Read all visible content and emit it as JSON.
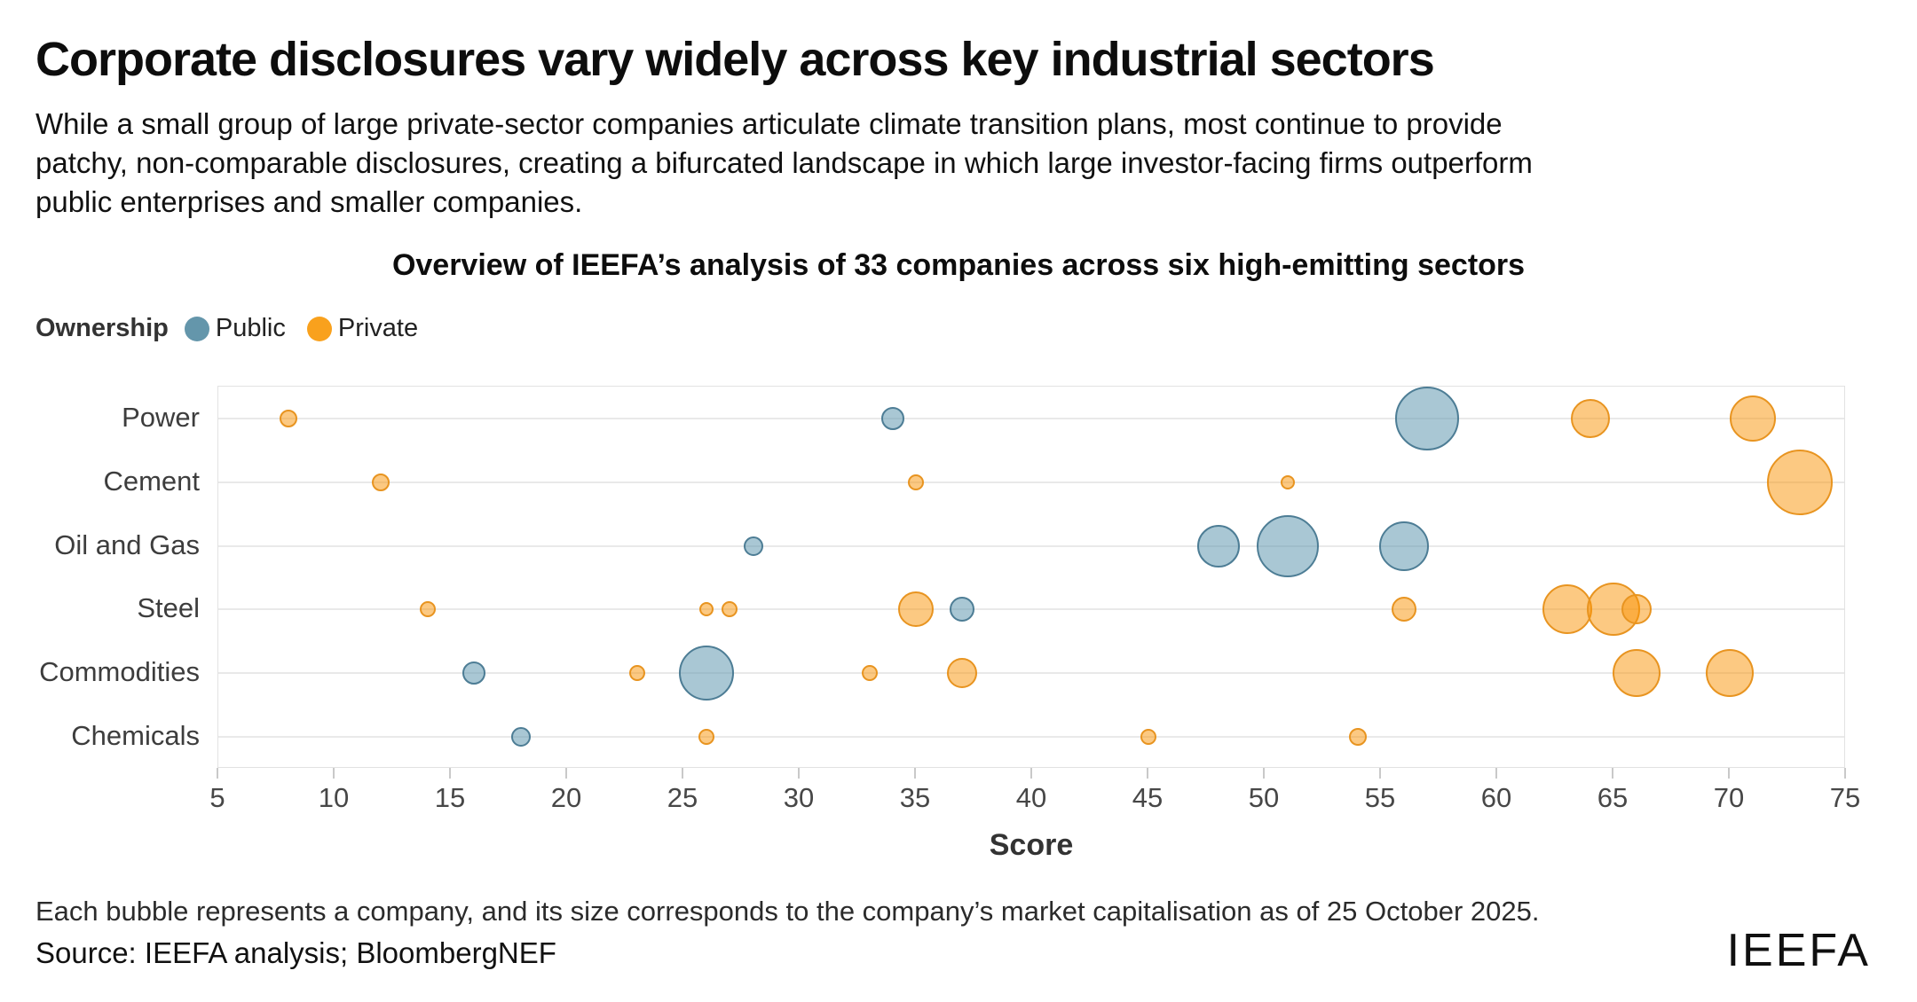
{
  "header": {
    "title": "Corporate disclosures vary widely across key industrial sectors",
    "subtitle_line1": "While a small group of large private-sector companies articulate climate transition plans, most continue to provide",
    "subtitle_line2": "patchy, non-comparable disclosures, creating a bifurcated landscape in which large investor-facing firms outperform",
    "subtitle_line3": "public enterprises and smaller companies."
  },
  "legend": {
    "label": "Ownership",
    "items": [
      {
        "label": "Public",
        "color": "#6496ab"
      },
      {
        "label": "Private",
        "color": "#f9a11d"
      }
    ]
  },
  "chart_data": {
    "type": "scatter",
    "subtype": "bubble",
    "title": "Overview of IEEFA’s analysis of 33 companies across six high-emitting sectors",
    "xlabel": "Score",
    "xlim": [
      5,
      75
    ],
    "x_ticks": [
      5,
      10,
      15,
      20,
      25,
      30,
      35,
      40,
      45,
      50,
      55,
      60,
      65,
      70,
      75
    ],
    "categories": [
      "Power",
      "Cement",
      "Oil and Gas",
      "Steel",
      "Commodities",
      "Chemicals"
    ],
    "grid": "horizontal",
    "legend_position": "top-left",
    "size_meaning": "market capitalisation as of 25 October 2025",
    "ownership_styles": {
      "Public": {
        "fill": "rgba(99,153,177,0.55)",
        "stroke": "#4d7d95"
      },
      "Private": {
        "fill": "rgba(249,148,6,0.5)",
        "stroke": "#e89420"
      }
    },
    "bubbles": [
      {
        "sector": "Power",
        "score": 8,
        "ownership": "Private",
        "r": 10
      },
      {
        "sector": "Power",
        "score": 34,
        "ownership": "Public",
        "r": 13
      },
      {
        "sector": "Power",
        "score": 57,
        "ownership": "Public",
        "r": 36
      },
      {
        "sector": "Power",
        "score": 64,
        "ownership": "Private",
        "r": 22
      },
      {
        "sector": "Power",
        "score": 71,
        "ownership": "Private",
        "r": 26
      },
      {
        "sector": "Cement",
        "score": 12,
        "ownership": "Private",
        "r": 10
      },
      {
        "sector": "Cement",
        "score": 35,
        "ownership": "Private",
        "r": 9
      },
      {
        "sector": "Cement",
        "score": 51,
        "ownership": "Private",
        "r": 8
      },
      {
        "sector": "Cement",
        "score": 73,
        "ownership": "Private",
        "r": 37
      },
      {
        "sector": "Oil and Gas",
        "score": 28,
        "ownership": "Public",
        "r": 11
      },
      {
        "sector": "Oil and Gas",
        "score": 48,
        "ownership": "Public",
        "r": 24
      },
      {
        "sector": "Oil and Gas",
        "score": 51,
        "ownership": "Public",
        "r": 35
      },
      {
        "sector": "Oil and Gas",
        "score": 56,
        "ownership": "Public",
        "r": 28
      },
      {
        "sector": "Steel",
        "score": 14,
        "ownership": "Private",
        "r": 9
      },
      {
        "sector": "Steel",
        "score": 26,
        "ownership": "Private",
        "r": 8
      },
      {
        "sector": "Steel",
        "score": 27,
        "ownership": "Private",
        "r": 9
      },
      {
        "sector": "Steel",
        "score": 35,
        "ownership": "Private",
        "r": 20
      },
      {
        "sector": "Steel",
        "score": 37,
        "ownership": "Public",
        "r": 14
      },
      {
        "sector": "Steel",
        "score": 56,
        "ownership": "Private",
        "r": 14
      },
      {
        "sector": "Steel",
        "score": 63,
        "ownership": "Private",
        "r": 28
      },
      {
        "sector": "Steel",
        "score": 65,
        "ownership": "Private",
        "r": 30
      },
      {
        "sector": "Steel",
        "score": 66,
        "ownership": "Private",
        "r": 17
      },
      {
        "sector": "Commodities",
        "score": 16,
        "ownership": "Public",
        "r": 13
      },
      {
        "sector": "Commodities",
        "score": 23,
        "ownership": "Private",
        "r": 9
      },
      {
        "sector": "Commodities",
        "score": 26,
        "ownership": "Public",
        "r": 31
      },
      {
        "sector": "Commodities",
        "score": 33,
        "ownership": "Private",
        "r": 9
      },
      {
        "sector": "Commodities",
        "score": 37,
        "ownership": "Private",
        "r": 17
      },
      {
        "sector": "Commodities",
        "score": 66,
        "ownership": "Private",
        "r": 27
      },
      {
        "sector": "Commodities",
        "score": 70,
        "ownership": "Private",
        "r": 27
      },
      {
        "sector": "Chemicals",
        "score": 18,
        "ownership": "Public",
        "r": 11
      },
      {
        "sector": "Chemicals",
        "score": 26,
        "ownership": "Private",
        "r": 9
      },
      {
        "sector": "Chemicals",
        "score": 45,
        "ownership": "Private",
        "r": 9
      },
      {
        "sector": "Chemicals",
        "score": 54,
        "ownership": "Private",
        "r": 10
      }
    ]
  },
  "footer": {
    "note": "Each bubble represents a company, and its size corresponds to the company’s market capitalisation as of 25 October 2025.",
    "source": "Source: IEEFA analysis; BloombergNEF",
    "logo": "IEEFA"
  }
}
